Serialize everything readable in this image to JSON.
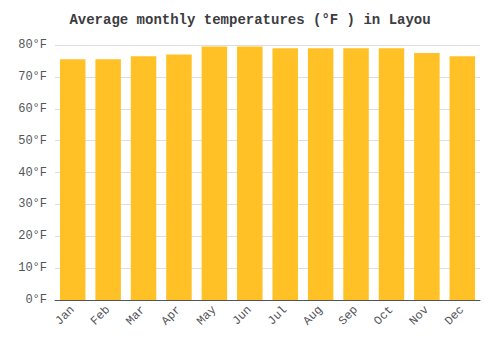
{
  "chart_data": {
    "type": "bar",
    "title": "Average monthly temperatures (°F ) in Layou",
    "categories": [
      "Jan",
      "Feb",
      "Mar",
      "Apr",
      "May",
      "Jun",
      "Jul",
      "Aug",
      "Sep",
      "Oct",
      "Nov",
      "Dec"
    ],
    "values": [
      75.5,
      75.5,
      76.5,
      77.0,
      79.5,
      79.5,
      79.0,
      79.0,
      79.0,
      79.0,
      77.5,
      76.5
    ],
    "color": "#FFC125",
    "ylim": [
      0,
      80
    ],
    "yticks": [
      {
        "value": 0,
        "label": "0°F"
      },
      {
        "value": 10,
        "label": "10°F"
      },
      {
        "value": 20,
        "label": "20°F"
      },
      {
        "value": 30,
        "label": "30°F"
      },
      {
        "value": 40,
        "label": "40°F"
      },
      {
        "value": 50,
        "label": "50°F"
      },
      {
        "value": 60,
        "label": "60°F"
      },
      {
        "value": 70,
        "label": "70°F"
      },
      {
        "value": 80,
        "label": "80°F"
      }
    ],
    "grid": true
  }
}
